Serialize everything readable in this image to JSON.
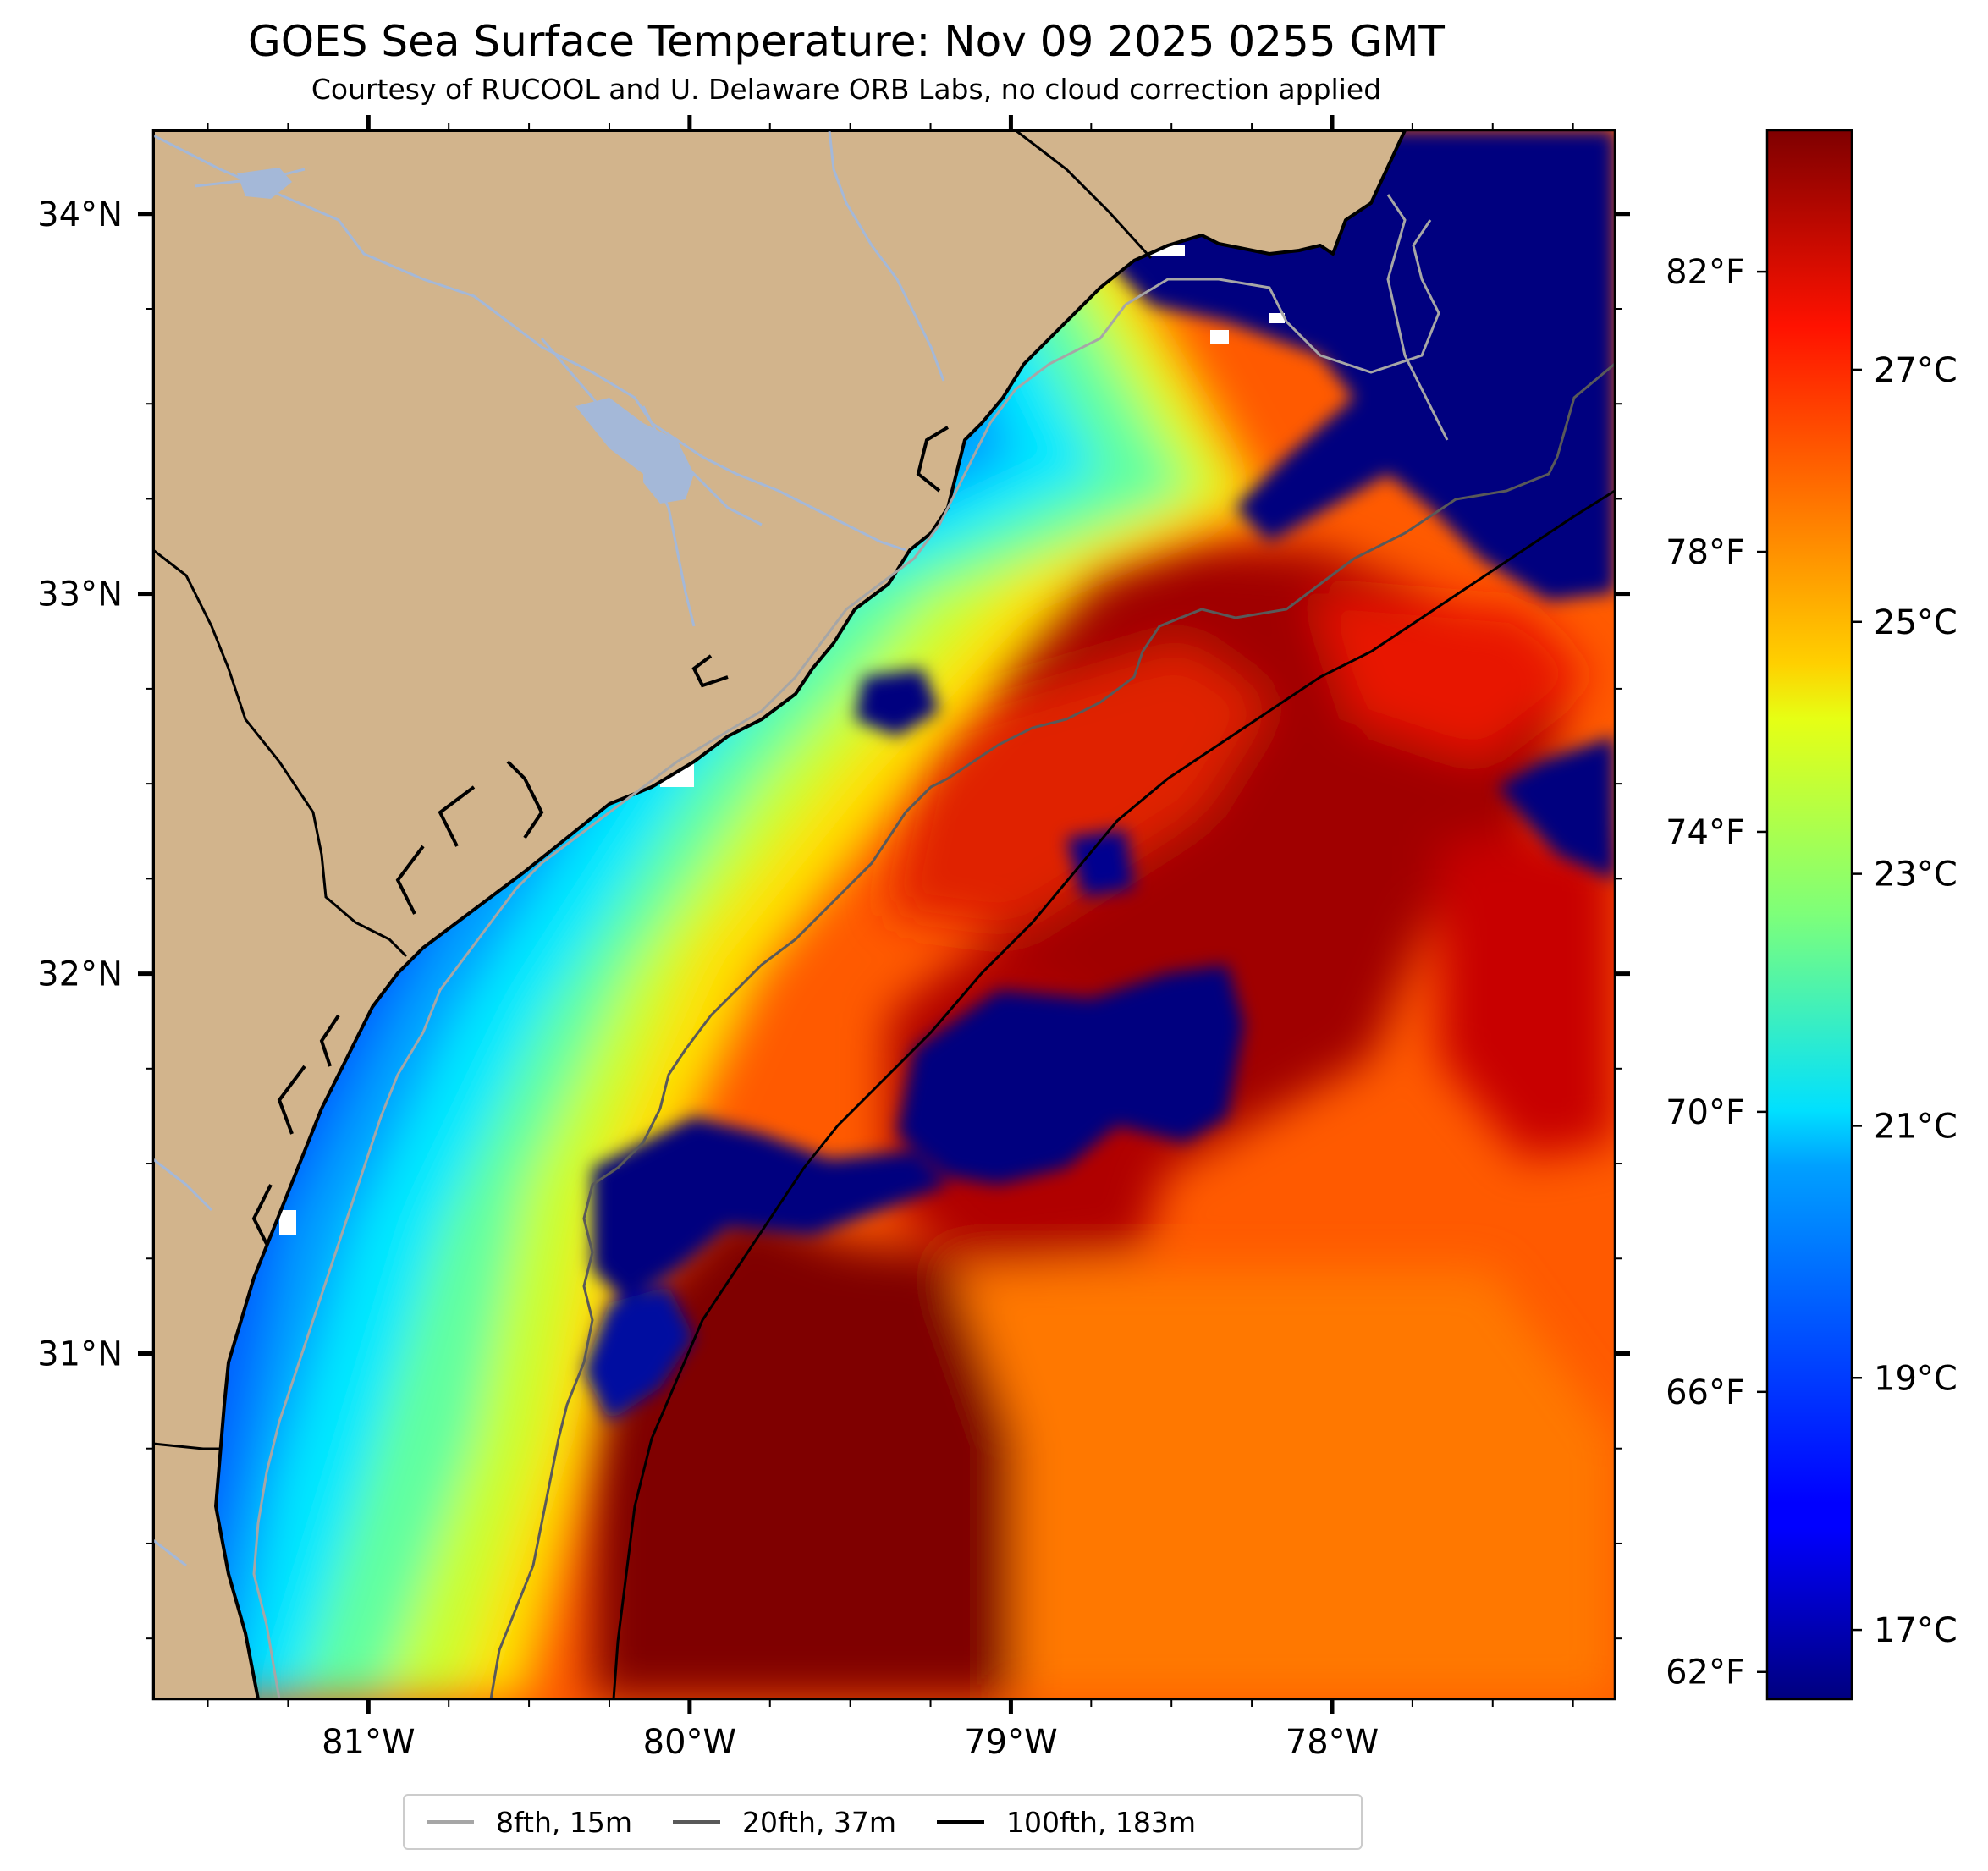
{
  "title": "GOES Sea Surface Temperature: Nov 09 2025 0255 GMT",
  "subtitle": "Courtesy of RUCOOL and U. Delaware ORB Labs, no cloud correction applied",
  "map": {
    "lon_range": [
      -81.67,
      -77.12
    ],
    "lat_range": [
      30.09,
      34.22
    ],
    "lat_ticks": [
      {
        "value": 34,
        "label": "34°N"
      },
      {
        "value": 33,
        "label": "33°N"
      },
      {
        "value": 32,
        "label": "32°N"
      },
      {
        "value": 31,
        "label": "31°N"
      }
    ],
    "lon_ticks": [
      {
        "value": -81,
        "label": "81°W"
      },
      {
        "value": -80,
        "label": "80°W"
      },
      {
        "value": -79,
        "label": "79°W"
      },
      {
        "value": -78,
        "label": "78°W"
      }
    ],
    "land_color": "#d2b48c",
    "colormap": "jet"
  },
  "colorbar": {
    "celsius_range": [
      16.45,
      28.9
    ],
    "celsius_labels": [
      "27°C",
      "25°C",
      "23°C",
      "21°C",
      "19°C",
      "17°C"
    ],
    "fahrenheit_labels": [
      "82°F",
      "78°F",
      "74°F",
      "70°F",
      "66°F",
      "62°F"
    ]
  },
  "legend": [
    {
      "label": "8fth, 15m",
      "color": "#a6a6a6"
    },
    {
      "label": "20fth, 37m",
      "color": "#595959"
    },
    {
      "label": "100fth, 183m",
      "color": "#000000"
    }
  ]
}
